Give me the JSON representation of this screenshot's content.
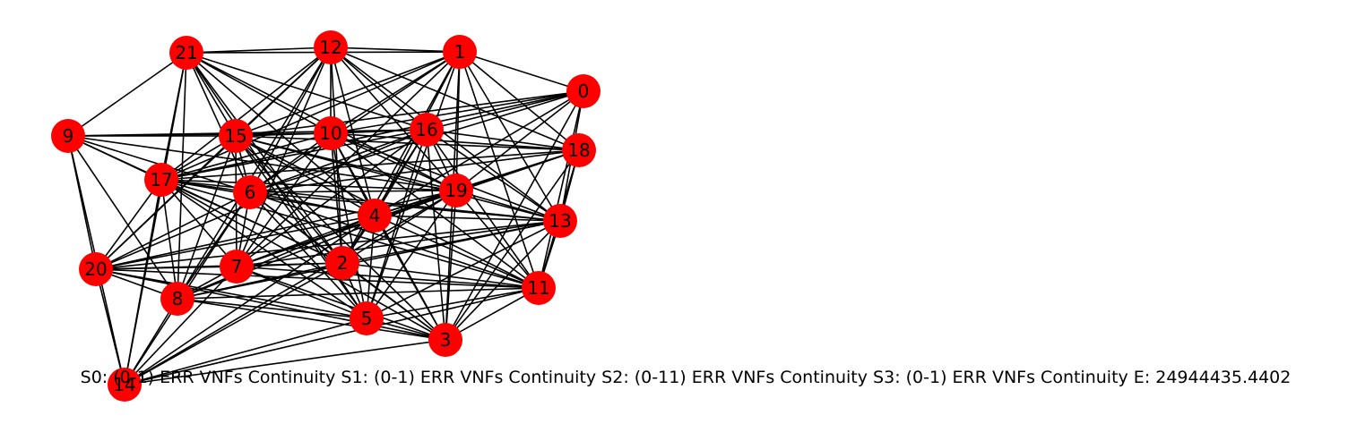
{
  "graph": {
    "node_color": "#ff0000",
    "edge_color": "#000000",
    "label_color": "#000000",
    "nodes": [
      {
        "id": "0"
      },
      {
        "id": "1"
      },
      {
        "id": "2"
      },
      {
        "id": "3"
      },
      {
        "id": "4"
      },
      {
        "id": "5"
      },
      {
        "id": "6"
      },
      {
        "id": "7"
      },
      {
        "id": "8"
      },
      {
        "id": "9"
      },
      {
        "id": "10"
      },
      {
        "id": "11"
      },
      {
        "id": "12"
      },
      {
        "id": "13"
      },
      {
        "id": "14"
      },
      {
        "id": "15"
      },
      {
        "id": "16"
      },
      {
        "id": "17"
      },
      {
        "id": "18"
      },
      {
        "id": "19"
      },
      {
        "id": "20"
      },
      {
        "id": "21"
      }
    ],
    "edges": [
      [
        "21",
        "12"
      ],
      [
        "21",
        "1"
      ],
      [
        "21",
        "9"
      ],
      [
        "21",
        "15"
      ],
      [
        "21",
        "10"
      ],
      [
        "21",
        "6"
      ],
      [
        "21",
        "19"
      ],
      [
        "21",
        "4"
      ],
      [
        "21",
        "2"
      ],
      [
        "21",
        "5"
      ],
      [
        "21",
        "8"
      ],
      [
        "21",
        "14"
      ],
      [
        "21",
        "17"
      ],
      [
        "21",
        "16"
      ],
      [
        "12",
        "1"
      ],
      [
        "12",
        "15"
      ],
      [
        "12",
        "10"
      ],
      [
        "12",
        "17"
      ],
      [
        "12",
        "6"
      ],
      [
        "12",
        "7"
      ],
      [
        "12",
        "4"
      ],
      [
        "12",
        "19"
      ],
      [
        "12",
        "18"
      ],
      [
        "12",
        "13"
      ],
      [
        "12",
        "16"
      ],
      [
        "12",
        "2"
      ],
      [
        "12",
        "8"
      ],
      [
        "12",
        "20"
      ],
      [
        "1",
        "15"
      ],
      [
        "1",
        "10"
      ],
      [
        "1",
        "17"
      ],
      [
        "1",
        "6"
      ],
      [
        "1",
        "4"
      ],
      [
        "1",
        "19"
      ],
      [
        "1",
        "18"
      ],
      [
        "1",
        "13"
      ],
      [
        "1",
        "11"
      ],
      [
        "1",
        "5"
      ],
      [
        "1",
        "3"
      ],
      [
        "1",
        "2"
      ],
      [
        "1",
        "7"
      ],
      [
        "1",
        "0"
      ],
      [
        "0",
        "16"
      ],
      [
        "0",
        "19"
      ],
      [
        "0",
        "15"
      ],
      [
        "0",
        "17"
      ],
      [
        "0",
        "4"
      ],
      [
        "0",
        "13"
      ],
      [
        "0",
        "11"
      ],
      [
        "0",
        "3"
      ],
      [
        "0",
        "6"
      ],
      [
        "0",
        "10"
      ],
      [
        "9",
        "15"
      ],
      [
        "9",
        "17"
      ],
      [
        "9",
        "6"
      ],
      [
        "9",
        "19"
      ],
      [
        "9",
        "10"
      ],
      [
        "9",
        "20"
      ],
      [
        "9",
        "14"
      ],
      [
        "9",
        "8"
      ],
      [
        "9",
        "2"
      ],
      [
        "9",
        "16"
      ],
      [
        "15",
        "10"
      ],
      [
        "15",
        "16"
      ],
      [
        "15",
        "17"
      ],
      [
        "15",
        "6"
      ],
      [
        "15",
        "19"
      ],
      [
        "15",
        "4"
      ],
      [
        "15",
        "2"
      ],
      [
        "15",
        "5"
      ],
      [
        "15",
        "7"
      ],
      [
        "15",
        "8"
      ],
      [
        "15",
        "20"
      ],
      [
        "15",
        "13"
      ],
      [
        "15",
        "11"
      ],
      [
        "15",
        "3"
      ],
      [
        "15",
        "18"
      ],
      [
        "10",
        "16"
      ],
      [
        "10",
        "6"
      ],
      [
        "10",
        "19"
      ],
      [
        "10",
        "4"
      ],
      [
        "10",
        "2"
      ],
      [
        "10",
        "5"
      ],
      [
        "10",
        "7"
      ],
      [
        "10",
        "17"
      ],
      [
        "10",
        "13"
      ],
      [
        "10",
        "11"
      ],
      [
        "10",
        "3"
      ],
      [
        "10",
        "18"
      ],
      [
        "16",
        "19"
      ],
      [
        "16",
        "6"
      ],
      [
        "16",
        "17"
      ],
      [
        "16",
        "4"
      ],
      [
        "16",
        "2"
      ],
      [
        "16",
        "5"
      ],
      [
        "16",
        "7"
      ],
      [
        "16",
        "13"
      ],
      [
        "16",
        "11"
      ],
      [
        "16",
        "3"
      ],
      [
        "16",
        "18"
      ],
      [
        "16",
        "20"
      ],
      [
        "18",
        "19"
      ],
      [
        "18",
        "4"
      ],
      [
        "18",
        "13"
      ],
      [
        "18",
        "11"
      ],
      [
        "18",
        "17"
      ],
      [
        "18",
        "6"
      ],
      [
        "18",
        "3"
      ],
      [
        "18",
        "7"
      ],
      [
        "17",
        "6"
      ],
      [
        "17",
        "19"
      ],
      [
        "17",
        "4"
      ],
      [
        "17",
        "2"
      ],
      [
        "17",
        "5"
      ],
      [
        "17",
        "7"
      ],
      [
        "17",
        "8"
      ],
      [
        "17",
        "20"
      ],
      [
        "17",
        "14"
      ],
      [
        "17",
        "13"
      ],
      [
        "17",
        "11"
      ],
      [
        "17",
        "3"
      ],
      [
        "6",
        "19"
      ],
      [
        "6",
        "4"
      ],
      [
        "6",
        "2"
      ],
      [
        "6",
        "5"
      ],
      [
        "6",
        "7"
      ],
      [
        "6",
        "8"
      ],
      [
        "6",
        "20"
      ],
      [
        "6",
        "14"
      ],
      [
        "6",
        "13"
      ],
      [
        "6",
        "11"
      ],
      [
        "6",
        "3"
      ],
      [
        "19",
        "4"
      ],
      [
        "19",
        "2"
      ],
      [
        "19",
        "5"
      ],
      [
        "19",
        "7"
      ],
      [
        "19",
        "8"
      ],
      [
        "19",
        "20"
      ],
      [
        "19",
        "13"
      ],
      [
        "19",
        "11"
      ],
      [
        "19",
        "3"
      ],
      [
        "19",
        "14"
      ],
      [
        "4",
        "2"
      ],
      [
        "4",
        "5"
      ],
      [
        "4",
        "7"
      ],
      [
        "4",
        "8"
      ],
      [
        "4",
        "20"
      ],
      [
        "4",
        "13"
      ],
      [
        "4",
        "11"
      ],
      [
        "4",
        "3"
      ],
      [
        "4",
        "14"
      ],
      [
        "13",
        "2"
      ],
      [
        "13",
        "5"
      ],
      [
        "13",
        "7"
      ],
      [
        "13",
        "8"
      ],
      [
        "13",
        "20"
      ],
      [
        "13",
        "11"
      ],
      [
        "13",
        "3"
      ],
      [
        "20",
        "7"
      ],
      [
        "20",
        "2"
      ],
      [
        "20",
        "8"
      ],
      [
        "20",
        "14"
      ],
      [
        "20",
        "5"
      ],
      [
        "20",
        "3"
      ],
      [
        "20",
        "11"
      ],
      [
        "7",
        "2"
      ],
      [
        "7",
        "8"
      ],
      [
        "7",
        "5"
      ],
      [
        "7",
        "3"
      ],
      [
        "7",
        "11"
      ],
      [
        "7",
        "14"
      ],
      [
        "2",
        "5"
      ],
      [
        "2",
        "8"
      ],
      [
        "2",
        "3"
      ],
      [
        "2",
        "11"
      ],
      [
        "2",
        "14"
      ],
      [
        "11",
        "5"
      ],
      [
        "11",
        "3"
      ],
      [
        "11",
        "8"
      ],
      [
        "11",
        "14"
      ],
      [
        "8",
        "5"
      ],
      [
        "8",
        "3"
      ],
      [
        "8",
        "14"
      ],
      [
        "5",
        "3"
      ],
      [
        "5",
        "14"
      ],
      [
        "3",
        "14"
      ]
    ]
  },
  "status_line": "S0: (0-1) ERR VNFs Continuity S1: (0-1) ERR VNFs Continuity S2: (0-11) ERR VNFs Continuity S3: (0-1) ERR VNFs Continuity  E: 24944435.4402"
}
